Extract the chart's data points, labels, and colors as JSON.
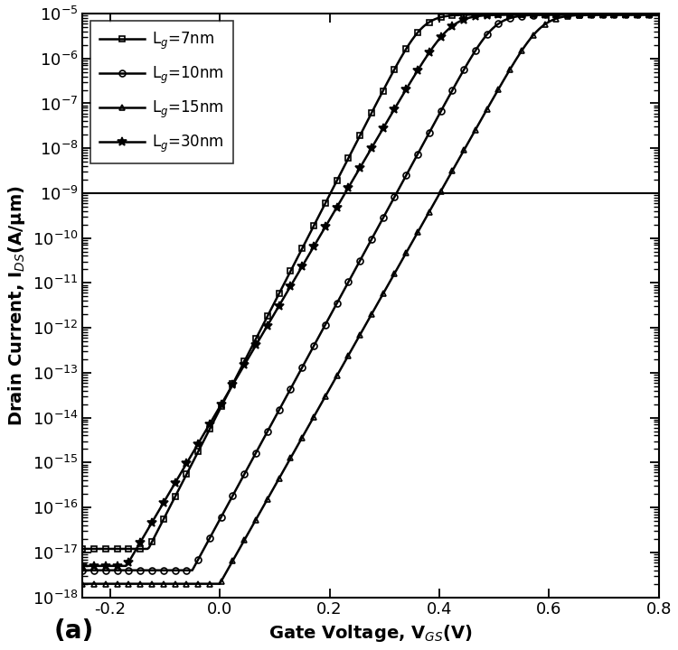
{
  "xlabel": "Gate Voltage, V$_{GS}$(V)",
  "ylabel": "Drain Current, I$_{DS}$(A/μm)",
  "xlim": [
    -0.25,
    0.8
  ],
  "ylim_log": [
    -18,
    -5
  ],
  "background_color": "#ffffff",
  "hline_y": 1e-09,
  "series": [
    {
      "label": "L$_g$=7nm",
      "marker": "s",
      "vth": -0.13,
      "slope": 55.0,
      "floor": 1.2e-17,
      "imax": 9.5e-06,
      "curve_power": 2.2
    },
    {
      "label": "L$_g$=10nm",
      "marker": "o",
      "vth": -0.05,
      "slope": 52.0,
      "floor": 4e-18,
      "imax": 9.5e-06,
      "curve_power": 2.2
    },
    {
      "label": "L$_g$=15nm",
      "marker": "^",
      "vth": 0.0,
      "slope": 50.0,
      "floor": 2e-18,
      "imax": 9.5e-06,
      "curve_power": 2.2
    },
    {
      "label": "L$_g$=30nm",
      "marker": "*",
      "vth": -0.17,
      "slope": 48.0,
      "floor": 5e-18,
      "imax": 9.5e-06,
      "curve_power": 2.2
    }
  ],
  "annotation": "(a)",
  "marker_size": {
    "s": 5,
    "o": 5,
    "^": 5,
    "*": 7
  },
  "markevery": 8
}
